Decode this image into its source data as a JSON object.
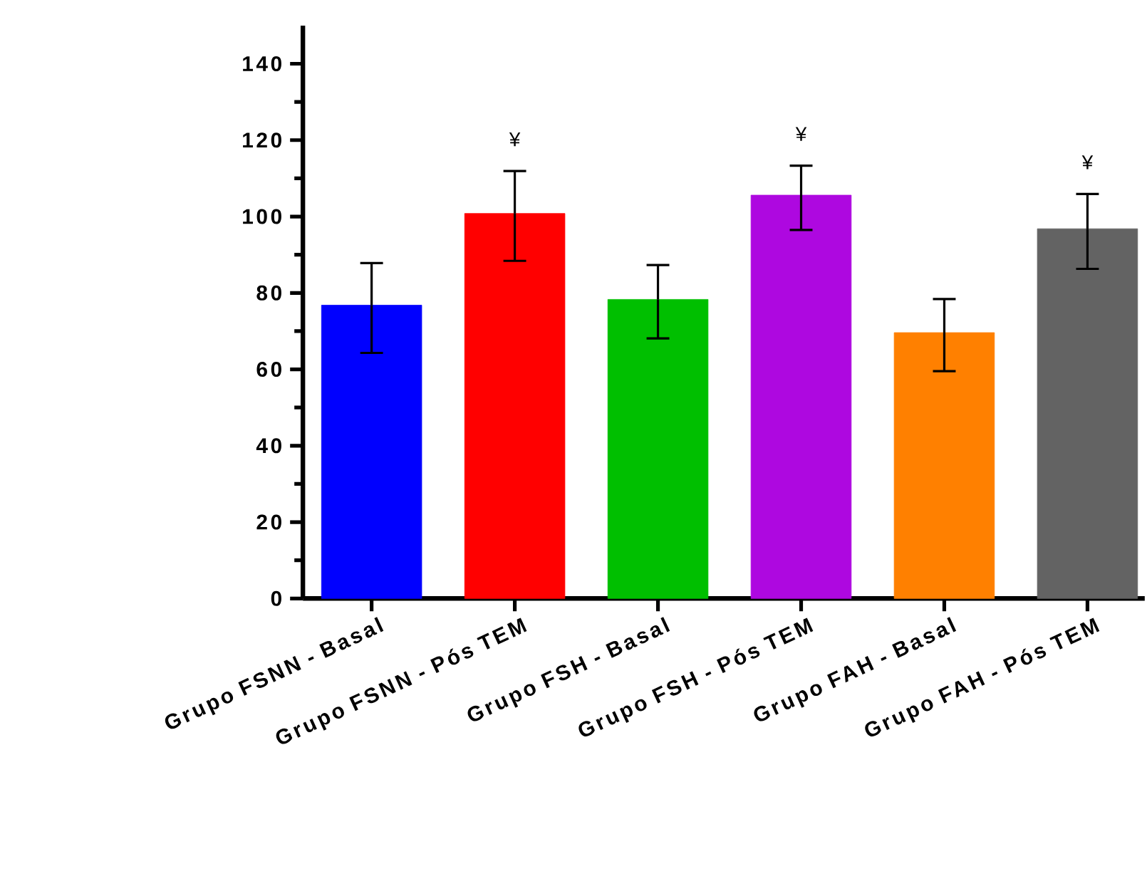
{
  "chart_data": {
    "type": "bar",
    "categories": [
      "Grupo FSNN - Basal",
      "Grupo FSNN - Pós TEM",
      "Grupo FSH - Basal",
      "Grupo FSH - Pós TEM",
      "Grupo FAH - Basal",
      "Grupo FAH - Pós TEM"
    ],
    "values": [
      76.8,
      100.8,
      78.3,
      105.6,
      69.6,
      96.8
    ],
    "colors": [
      "#0000ff",
      "#ff0000",
      "#00bf00",
      "#ae08e0",
      "#ff8000",
      "#636363"
    ],
    "errors": [
      [
        64.3,
        87.8
      ],
      [
        88.4,
        111.9
      ],
      [
        68.1,
        87.3
      ],
      [
        96.5,
        113.3
      ],
      [
        59.5,
        78.4
      ],
      [
        86.3,
        105.9
      ]
    ],
    "ylim": [
      0,
      150
    ],
    "yticks": [
      0,
      20,
      40,
      60,
      80,
      100,
      120,
      140
    ],
    "annotations": [
      "¥",
      "¥",
      "¥"
    ],
    "grid": false
  }
}
